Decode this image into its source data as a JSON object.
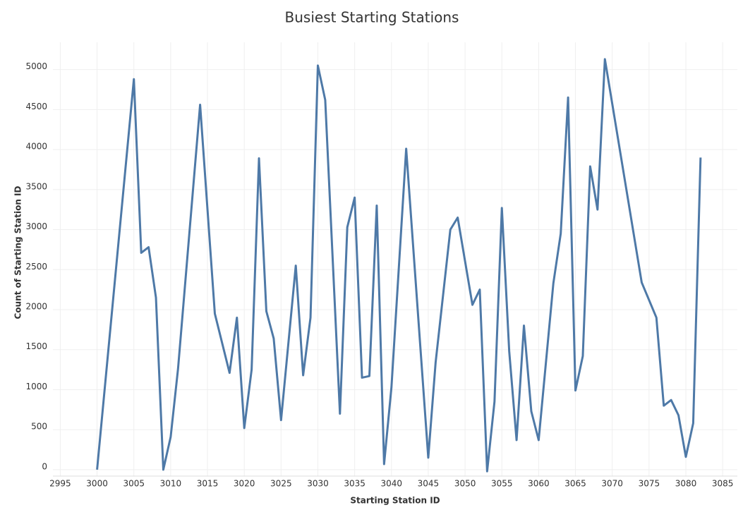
{
  "chart_data": {
    "type": "line",
    "title": "Busiest Starting Stations",
    "x_label": "Starting Station ID",
    "y_label": "Count of Starting Station ID",
    "x": [
      3000,
      3005,
      3006,
      3007,
      3008,
      3009,
      3010,
      3011,
      3014,
      3016,
      3018,
      3019,
      3020,
      3021,
      3022,
      3023,
      3024,
      3025,
      3027,
      3028,
      3029,
      3030,
      3031,
      3033,
      3034,
      3035,
      3036,
      3037,
      3038,
      3039,
      3040,
      3042,
      3045,
      3046,
      3048,
      3049,
      3051,
      3052,
      3053,
      3054,
      3055,
      3056,
      3057,
      3058,
      3059,
      3060,
      3062,
      3063,
      3064,
      3065,
      3066,
      3067,
      3068,
      3069,
      3074,
      3076,
      3077,
      3078,
      3079,
      3080,
      3081,
      3082
    ],
    "series": [
      {
        "name": "Count of Starting Station ID",
        "color": "#4e79a7",
        "values": [
          0,
          4880,
          2710,
          2780,
          2150,
          0,
          410,
          1260,
          4560,
          1950,
          1210,
          1900,
          520,
          1250,
          3890,
          1980,
          1640,
          620,
          2550,
          1180,
          1900,
          5050,
          4620,
          700,
          3030,
          3400,
          1150,
          1170,
          3300,
          70,
          1030,
          4010,
          150,
          1340,
          3000,
          3150,
          2060,
          2250,
          -20,
          850,
          3270,
          1480,
          370,
          1800,
          730,
          370,
          2330,
          2950,
          4650,
          990,
          1420,
          3790,
          3250,
          5130,
          2340,
          1900,
          800,
          870,
          680,
          160,
          580,
          3900
        ]
      }
    ],
    "xlim": [
      2994,
      3087
    ],
    "xticks": [
      2995,
      3000,
      3005,
      3010,
      3015,
      3020,
      3025,
      3030,
      3035,
      3040,
      3045,
      3050,
      3055,
      3060,
      3065,
      3070,
      3075,
      3080,
      3085
    ],
    "ylim": [
      -80,
      5340
    ],
    "yticks": [
      0,
      500,
      1000,
      1500,
      2000,
      2500,
      3000,
      3500,
      4000,
      4500,
      5000
    ],
    "grid": true
  }
}
